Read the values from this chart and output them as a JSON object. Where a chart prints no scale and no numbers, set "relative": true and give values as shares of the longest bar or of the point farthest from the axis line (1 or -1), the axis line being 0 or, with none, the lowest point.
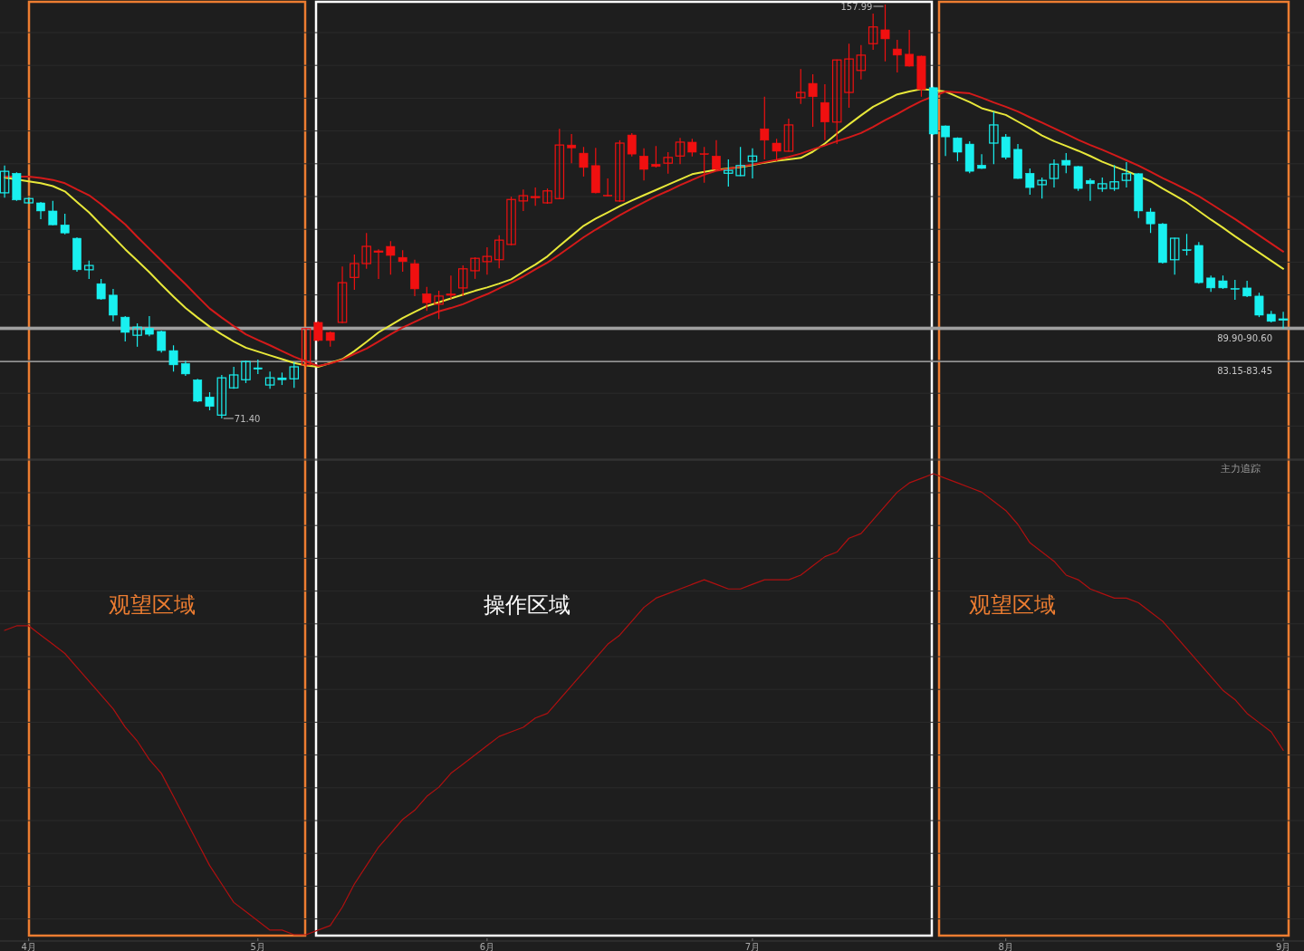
{
  "chart_data": [
    {
      "type": "candlestick",
      "grid": "y",
      "categories": [
        null,
        null,
        null,
        null,
        null,
        null,
        null,
        null,
        null,
        null,
        null,
        null,
        null,
        null,
        null,
        null,
        null,
        null,
        null,
        null,
        null,
        null,
        null,
        null,
        null,
        null,
        null,
        null,
        null,
        null,
        null,
        null,
        null,
        null,
        null,
        null,
        null,
        null,
        null,
        null,
        null,
        null,
        null,
        null,
        null,
        null,
        null,
        null,
        null,
        null,
        null,
        null,
        null,
        null,
        null,
        null,
        null,
        null,
        null,
        null,
        null,
        null,
        null,
        null,
        null,
        null,
        null,
        null,
        null,
        null,
        null,
        null,
        null,
        null,
        null,
        null,
        null,
        null,
        null,
        null,
        null,
        null,
        null,
        null,
        null,
        null,
        null,
        null,
        null,
        null,
        null,
        null,
        null,
        null,
        null,
        null,
        null,
        null,
        null,
        null,
        null,
        null,
        null,
        null,
        null,
        null,
        null
      ],
      "ohlc": [
        [
          118.6,
          124.3,
          117.6,
          123.1
        ],
        [
          122.7,
          122.9,
          116.9,
          117.1
        ],
        [
          116.5,
          117.6,
          116.3,
          117.4
        ],
        [
          116.5,
          116.7,
          113.1,
          114.8
        ],
        [
          114.8,
          116.9,
          111.8,
          111.9
        ],
        [
          111.9,
          114.2,
          109.9,
          110.2
        ],
        [
          109.1,
          109.3,
          102.1,
          102.5
        ],
        [
          102.5,
          104.4,
          100.6,
          103.4
        ],
        [
          99.6,
          100.6,
          96.2,
          96.4
        ],
        [
          97.2,
          98.5,
          91.7,
          93.0
        ],
        [
          92.6,
          92.8,
          87.5,
          89.4
        ],
        [
          88.8,
          91.3,
          86.4,
          90.5
        ],
        [
          90.3,
          92.8,
          88.6,
          89.0
        ],
        [
          89.6,
          89.8,
          85.2,
          85.6
        ],
        [
          85.6,
          86.7,
          81.2,
          82.6
        ],
        [
          82.9,
          83.5,
          80.3,
          80.7
        ],
        [
          79.5,
          79.7,
          74.8,
          75.0
        ],
        [
          75.9,
          76.9,
          73.1,
          73.9
        ],
        [
          72.1,
          80.5,
          71.4,
          79.9
        ],
        [
          77.8,
          82.2,
          77.6,
          80.5
        ],
        [
          79.5,
          83.5,
          78.8,
          83.3
        ],
        [
          82.0,
          83.7,
          80.7,
          81.7
        ],
        [
          78.4,
          81.2,
          77.6,
          79.9
        ],
        [
          79.9,
          81.0,
          78.4,
          79.5
        ],
        [
          79.7,
          83.2,
          77.8,
          82.2
        ],
        [
          82.6,
          90.3,
          82.2,
          90.2
        ],
        [
          91.5,
          91.7,
          87.5,
          87.7
        ],
        [
          89.4,
          89.6,
          86.4,
          87.7
        ],
        [
          91.5,
          103.2,
          91.3,
          99.8
        ],
        [
          100.9,
          105.7,
          98.3,
          103.8
        ],
        [
          103.8,
          110.2,
          102.7,
          107.4
        ],
        [
          106.3,
          106.8,
          100.6,
          106.4
        ],
        [
          107.4,
          108.5,
          101.5,
          105.5
        ],
        [
          105.1,
          106.6,
          102.1,
          104.2
        ],
        [
          103.8,
          104.6,
          97.0,
          98.5
        ],
        [
          97.5,
          98.9,
          93.9,
          95.6
        ],
        [
          95.3,
          98.1,
          92.2,
          97.0
        ],
        [
          97.3,
          101.3,
          96.4,
          97.4
        ],
        [
          98.7,
          103.4,
          97.0,
          102.7
        ],
        [
          102.3,
          105.1,
          100.6,
          104.9
        ],
        [
          104.2,
          107.2,
          101.5,
          105.3
        ],
        [
          104.6,
          109.7,
          102.8,
          108.7
        ],
        [
          107.8,
          117.8,
          107.6,
          117.2
        ],
        [
          116.9,
          119.3,
          114.8,
          118.0
        ],
        [
          117.7,
          119.7,
          115.9,
          117.8
        ],
        [
          116.5,
          119.5,
          116.3,
          119.0
        ],
        [
          117.4,
          132.0,
          117.3,
          128.6
        ],
        [
          128.6,
          130.9,
          124.8,
          128.0
        ],
        [
          126.9,
          128.2,
          122.0,
          123.9
        ],
        [
          124.3,
          128.0,
          118.5,
          118.6
        ],
        [
          118.1,
          121.6,
          117.8,
          118.0
        ],
        [
          116.9,
          129.6,
          116.7,
          129.0
        ],
        [
          130.7,
          131.1,
          126.2,
          126.7
        ],
        [
          126.3,
          127.9,
          121.2,
          123.5
        ],
        [
          124.6,
          128.4,
          123.9,
          124.1
        ],
        [
          124.8,
          127.1,
          122.6,
          126.0
        ],
        [
          126.3,
          130.1,
          124.6,
          129.2
        ],
        [
          129.2,
          129.9,
          126.2,
          127.1
        ],
        [
          126.8,
          128.2,
          120.7,
          126.7
        ],
        [
          126.3,
          129.6,
          123.3,
          123.5
        ],
        [
          122.7,
          125.6,
          119.9,
          123.3
        ],
        [
          122.2,
          128.2,
          122.1,
          124.3
        ],
        [
          125.2,
          127.9,
          121.6,
          126.3
        ],
        [
          132.0,
          138.7,
          125.6,
          129.6
        ],
        [
          129.0,
          129.9,
          125.2,
          127.3
        ],
        [
          127.3,
          134.1,
          127.2,
          132.8
        ],
        [
          138.5,
          144.5,
          137.2,
          139.6
        ],
        [
          141.5,
          143.4,
          132.4,
          138.7
        ],
        [
          137.5,
          141.3,
          129.6,
          133.4
        ],
        [
          133.4,
          146.5,
          128.8,
          146.4
        ],
        [
          139.6,
          149.8,
          136.4,
          146.6
        ],
        [
          144.2,
          149.5,
          142.3,
          147.4
        ],
        [
          149.8,
          156.1,
          148.5,
          153.3
        ],
        [
          152.7,
          157.99,
          146.1,
          150.8
        ],
        [
          148.7,
          150.6,
          143.8,
          147.4
        ],
        [
          147.6,
          152.7,
          145.0,
          145.1
        ],
        [
          147.2,
          147.3,
          138.7,
          140.2
        ],
        [
          140.6,
          140.8,
          130.7,
          130.9
        ],
        [
          132.6,
          132.7,
          126.3,
          130.3
        ],
        [
          130.1,
          130.2,
          125.2,
          127.1
        ],
        [
          128.8,
          129.4,
          122.7,
          123.1
        ],
        [
          124.4,
          126.7,
          123.6,
          123.7
        ],
        [
          129.0,
          135.6,
          124.6,
          132.8
        ],
        [
          130.3,
          130.9,
          125.6,
          126.0
        ],
        [
          127.7,
          128.8,
          121.5,
          121.6
        ],
        [
          122.7,
          123.7,
          118.2,
          119.7
        ],
        [
          120.3,
          121.8,
          117.4,
          121.2
        ],
        [
          121.6,
          125.6,
          119.7,
          124.6
        ],
        [
          125.4,
          126.9,
          122.7,
          124.4
        ],
        [
          124.1,
          124.2,
          119.0,
          119.5
        ],
        [
          121.2,
          121.6,
          116.9,
          120.5
        ],
        [
          119.5,
          121.8,
          118.8,
          120.5
        ],
        [
          119.5,
          124.4,
          119.0,
          120.9
        ],
        [
          121.2,
          125.0,
          119.7,
          122.6
        ],
        [
          122.6,
          122.7,
          113.3,
          114.8
        ],
        [
          114.6,
          115.4,
          110.2,
          112.1
        ],
        [
          112.1,
          112.3,
          103.8,
          104.0
        ],
        [
          104.6,
          109.2,
          101.5,
          109.1
        ],
        [
          106.7,
          110.0,
          105.5,
          106.6
        ],
        [
          107.6,
          108.3,
          99.6,
          99.8
        ],
        [
          100.8,
          101.3,
          97.9,
          98.7
        ],
        [
          100.2,
          101.3,
          98.5,
          98.7
        ],
        [
          98.6,
          100.4,
          96.2,
          98.5
        ],
        [
          98.7,
          100.2,
          96.8,
          97.0
        ],
        [
          97.0,
          97.7,
          92.6,
          93.0
        ],
        [
          93.2,
          93.9,
          91.5,
          91.7
        ],
        [
          92.0,
          93.7,
          90.2,
          92.2
        ]
      ],
      "colors": [
        "#19f0f0",
        "#19f0f0",
        "#19f0f0",
        "#19f0f0",
        "#19f0f0",
        "#19f0f0",
        "#19f0f0",
        "#19f0f0",
        "#19f0f0",
        "#19f0f0",
        "#19f0f0",
        "#19f0f0",
        "#19f0f0",
        "#19f0f0",
        "#19f0f0",
        "#19f0f0",
        "#19f0f0",
        "#19f0f0",
        "#19f0f0",
        "#19f0f0",
        "#19f0f0",
        "#19f0f0",
        "#19f0f0",
        "#19f0f0",
        "#19f0f0",
        "#f01010",
        "#f01010",
        "#f01010",
        "#f01010",
        "#f01010",
        "#f01010",
        "#f01010",
        "#f01010",
        "#f01010",
        "#f01010",
        "#f01010",
        "#f01010",
        "#f01010",
        "#f01010",
        "#f01010",
        "#f01010",
        "#f01010",
        "#f01010",
        "#f01010",
        "#f01010",
        "#f01010",
        "#f01010",
        "#f01010",
        "#f01010",
        "#f01010",
        "#f01010",
        "#f01010",
        "#f01010",
        "#f01010",
        "#f01010",
        "#f01010",
        "#f01010",
        "#f01010",
        "#f01010",
        "#f01010",
        "#19f0f0",
        "#19f0f0",
        "#19f0f0",
        "#f01010",
        "#f01010",
        "#f01010",
        "#f01010",
        "#f01010",
        "#f01010",
        "#f01010",
        "#f01010",
        "#f01010",
        "#f01010",
        "#f01010",
        "#f01010",
        "#f01010",
        "#f01010",
        "#19f0f0",
        "#19f0f0",
        "#19f0f0",
        "#19f0f0",
        "#19f0f0",
        "#19f0f0",
        "#19f0f0",
        "#19f0f0",
        "#19f0f0",
        "#19f0f0",
        "#19f0f0",
        "#19f0f0",
        "#19f0f0",
        "#19f0f0",
        "#19f0f0",
        "#19f0f0",
        "#19f0f0",
        "#19f0f0",
        "#19f0f0",
        "#19f0f0",
        "#19f0f0",
        "#19f0f0",
        "#19f0f0",
        "#19f0f0",
        "#19f0f0",
        "#19f0f0",
        "#19f0f0",
        "#19f0f0",
        "#19f0f0",
        "#19f0f0"
      ],
      "series": [
        {
          "type": "line",
          "color": "#e8e83a",
          "values": [
            121.8,
            null,
            121.0,
            120.6,
            120.0,
            118.9,
            116.7,
            114.5,
            111.9,
            109.4,
            106.8,
            104.4,
            102.0,
            99.4,
            96.9,
            94.5,
            92.5,
            90.6,
            89.0,
            87.5,
            86.2,
            85.4,
            84.6,
            83.8,
            83.0,
            82.5,
            82.2,
            83.0,
            83.8,
            85.5,
            87.4,
            89.4,
            90.9,
            92.4,
            93.7,
            94.9,
            95.7,
            96.5,
            97.3,
            98.1,
            98.8,
            99.6,
            100.5,
            102.1,
            103.6,
            105.3,
            107.5,
            109.6,
            111.7,
            113.2,
            114.5,
            115.8,
            117.0,
            118.1,
            119.2,
            120.3,
            121.4,
            122.5,
            123.0,
            123.4,
            123.7,
            124.0,
            124.4,
            124.9,
            125.3,
            125.6,
            125.9,
            127.2,
            128.9,
            131.0,
            132.9,
            134.8,
            136.6,
            137.9,
            139.2,
            139.8,
            140.3,
            null,
            139.8,
            138.7,
            137.6,
            136.3,
            135.6,
            134.9,
            133.5,
            132.1,
            130.6,
            129.4,
            128.4,
            127.4,
            126.3,
            125.1,
            124.1,
            123.2,
            null,
            121.0,
            119.5,
            118.1,
            116.6,
            114.8,
            113.0,
            111.3,
            109.5,
            107.8,
            106.1,
            104.4,
            102.7
          ]
        },
        {
          "type": "line",
          "color": "#d41a1a",
          "values": [
            122.0,
            null,
            122.0,
            121.7,
            121.3,
            120.6,
            119.3,
            118.1,
            116.2,
            114.1,
            112.0,
            109.4,
            106.9,
            104.4,
            101.9,
            99.5,
            96.9,
            94.4,
            92.5,
            90.7,
            89.0,
            87.8,
            86.7,
            85.5,
            84.3,
            83.3,
            82.4,
            82.9,
            83.7,
            84.9,
            86.0,
            87.5,
            89.0,
            90.4,
            91.6,
            92.8,
            93.8,
            94.5,
            95.3,
            96.4,
            97.4,
            98.6,
            99.8,
            101.1,
            102.6,
            104.0,
            105.7,
            107.5,
            109.3,
            110.9,
            112.4,
            113.9,
            115.3,
            116.6,
            117.9,
            119.0,
            120.2,
            121.3,
            122.4,
            123.2,
            123.6,
            124.1,
            124.5,
            125.0,
            125.5,
            126.1,
            126.8,
            127.7,
            128.5,
            129.4,
            130.2,
            131.1,
            132.4,
            133.8,
            135.1,
            136.5,
            137.8,
            null,
            139.8,
            139.6,
            139.4,
            138.5,
            137.5,
            136.6,
            135.6,
            134.4,
            133.3,
            132.1,
            130.9,
            129.7,
            128.6,
            127.6,
            126.5,
            125.4,
            124.3,
            123.0,
            121.7,
            120.5,
            119.2,
            117.9,
            116.3,
            114.7,
            113.1,
            111.4,
            109.7,
            108.0,
            106.3
          ]
        }
      ],
      "bands": [
        {
          "axis": "y",
          "from": 89.9,
          "to": 90.6,
          "label": "89.90-90.60",
          "color": "#a0a0a0"
        },
        {
          "axis": "y",
          "from": 83.15,
          "to": 83.45,
          "label": "83.15-83.45",
          "color": "#9a9a9a"
        }
      ],
      "annotations": [
        "157.99",
        "71.40"
      ]
    },
    {
      "type": "line",
      "relative": true,
      "title": "主力追踪",
      "grid": "y",
      "categories": [
        null,
        null,
        "4月",
        null,
        null,
        null,
        null,
        null,
        null,
        null,
        null,
        null,
        null,
        null,
        null,
        null,
        null,
        null,
        null,
        null,
        null,
        "5月",
        null,
        null,
        null,
        null,
        null,
        null,
        null,
        null,
        null,
        null,
        null,
        null,
        null,
        null,
        null,
        null,
        null,
        null,
        "6月",
        null,
        null,
        null,
        null,
        null,
        null,
        null,
        null,
        null,
        null,
        null,
        null,
        null,
        null,
        null,
        null,
        null,
        null,
        null,
        null,
        null,
        "7月",
        null,
        null,
        null,
        null,
        null,
        null,
        null,
        null,
        null,
        null,
        null,
        null,
        null,
        null,
        null,
        null,
        null,
        null,
        null,
        null,
        "8月",
        null,
        null,
        null,
        null,
        null,
        null,
        null,
        null,
        null,
        null,
        null,
        null,
        null,
        null,
        null,
        null,
        null,
        null,
        null,
        null,
        null,
        null,
        "9月"
      ],
      "series": [
        {
          "color": "#b01010",
          "values": [
            0.66,
            0.67,
            0.67,
            0.65,
            0.63,
            0.61,
            0.58,
            0.55,
            0.52,
            0.49,
            0.45,
            0.42,
            0.38,
            0.35,
            0.3,
            0.25,
            0.2,
            0.15,
            0.11,
            0.07,
            0.05,
            0.03,
            0.01,
            0.01,
            0,
            0,
            0.01,
            0.02,
            0.06,
            0.11,
            0.15,
            0.19,
            0.22,
            0.25,
            0.27,
            0.3,
            0.32,
            0.35,
            0.37,
            0.39,
            0.41,
            0.43,
            0.44,
            0.45,
            0.47,
            0.48,
            0.51,
            0.54,
            0.57,
            0.6,
            0.63,
            0.65,
            0.68,
            0.71,
            0.73,
            0.74,
            0.75,
            0.76,
            0.77,
            0.76,
            0.75,
            0.75,
            0.76,
            0.77,
            0.77,
            0.77,
            0.78,
            0.8,
            0.82,
            0.83,
            0.86,
            0.87,
            0.9,
            0.93,
            0.96,
            0.98,
            0.99,
            1,
            0.99,
            0.98,
            0.97,
            0.96,
            0.94,
            0.92,
            0.89,
            0.85,
            0.83,
            0.81,
            0.78,
            0.77,
            0.75,
            0.74,
            0.73,
            0.73,
            0.72,
            0.7,
            0.68,
            0.65,
            0.62,
            0.59,
            0.56,
            0.53,
            0.51,
            0.48,
            0.46,
            0.44,
            0.4
          ]
        }
      ],
      "annotations": [
        "观望区域",
        "操作区域",
        "观望区域"
      ]
    }
  ]
}
